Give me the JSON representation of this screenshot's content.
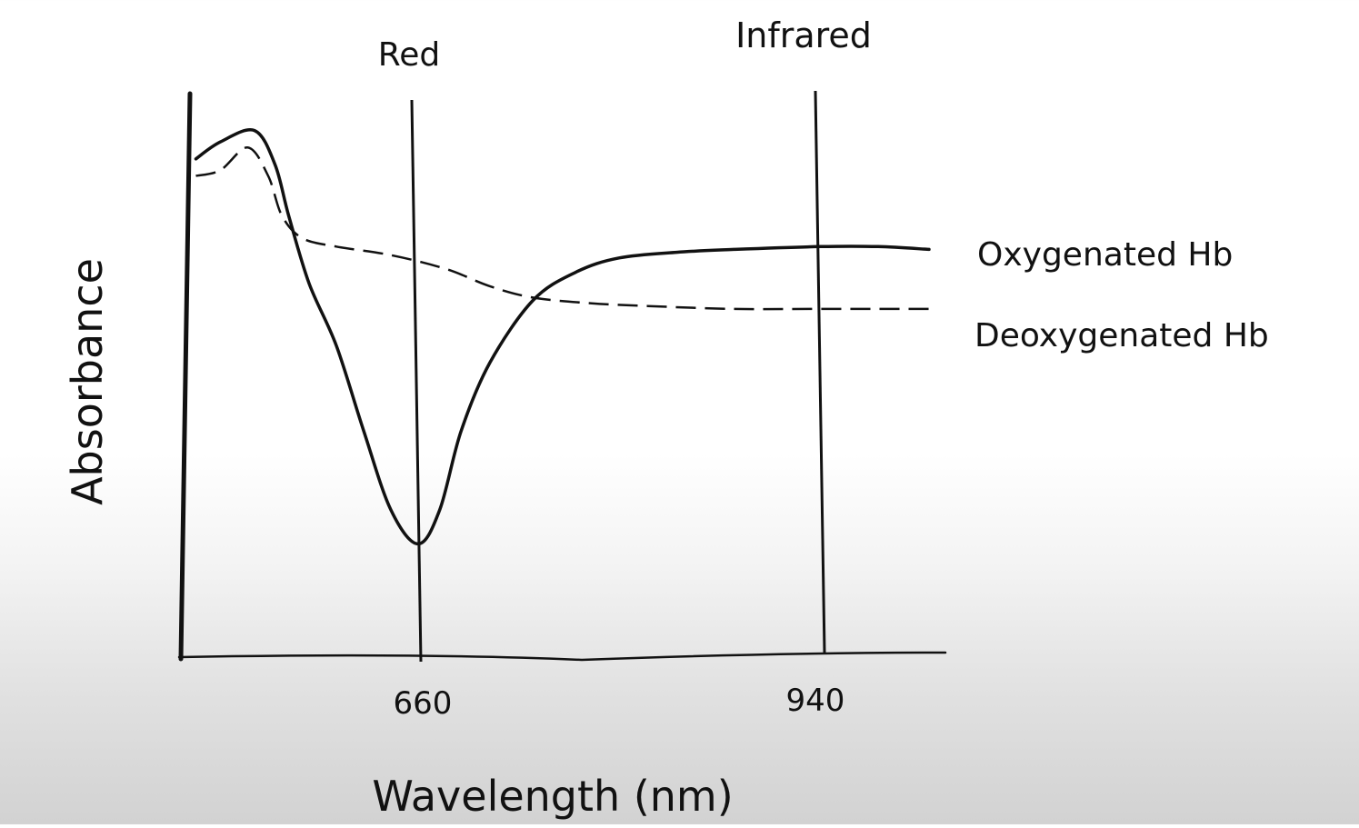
{
  "chart_data": {
    "type": "line",
    "title": "",
    "xlabel": "Wavelength (nm)",
    "ylabel": "Absorbance",
    "x_ticks": [
      {
        "value": 660,
        "label": "660"
      },
      {
        "value": 940,
        "label": "940"
      }
    ],
    "band_markers": [
      {
        "name": "Red",
        "x": 660
      },
      {
        "name": "Infrared",
        "x": 940
      }
    ],
    "xlim": [
      490,
      1020
    ],
    "ylim": [
      0,
      1
    ],
    "series": [
      {
        "name": "Oxygenated Hb",
        "style": "solid",
        "points": [
          [
            497,
            0.88
          ],
          [
            515,
            0.91
          ],
          [
            540,
            0.93
          ],
          [
            555,
            0.87
          ],
          [
            565,
            0.78
          ],
          [
            580,
            0.66
          ],
          [
            600,
            0.55
          ],
          [
            620,
            0.4
          ],
          [
            640,
            0.26
          ],
          [
            660,
            0.2
          ],
          [
            675,
            0.26
          ],
          [
            690,
            0.4
          ],
          [
            710,
            0.52
          ],
          [
            740,
            0.63
          ],
          [
            770,
            0.68
          ],
          [
            800,
            0.705
          ],
          [
            840,
            0.715
          ],
          [
            880,
            0.72
          ],
          [
            940,
            0.725
          ],
          [
            980,
            0.725
          ],
          [
            1015,
            0.72
          ]
        ]
      },
      {
        "name": "Deoxygenated Hb",
        "style": "dashed",
        "points": [
          [
            497,
            0.85
          ],
          [
            515,
            0.86
          ],
          [
            535,
            0.9
          ],
          [
            550,
            0.85
          ],
          [
            560,
            0.78
          ],
          [
            575,
            0.74
          ],
          [
            600,
            0.725
          ],
          [
            640,
            0.71
          ],
          [
            680,
            0.685
          ],
          [
            710,
            0.655
          ],
          [
            740,
            0.635
          ],
          [
            780,
            0.625
          ],
          [
            820,
            0.62
          ],
          [
            880,
            0.615
          ],
          [
            940,
            0.615
          ],
          [
            1015,
            0.615
          ]
        ]
      }
    ],
    "grid": false,
    "legend": "right, labels placed at line ends"
  }
}
